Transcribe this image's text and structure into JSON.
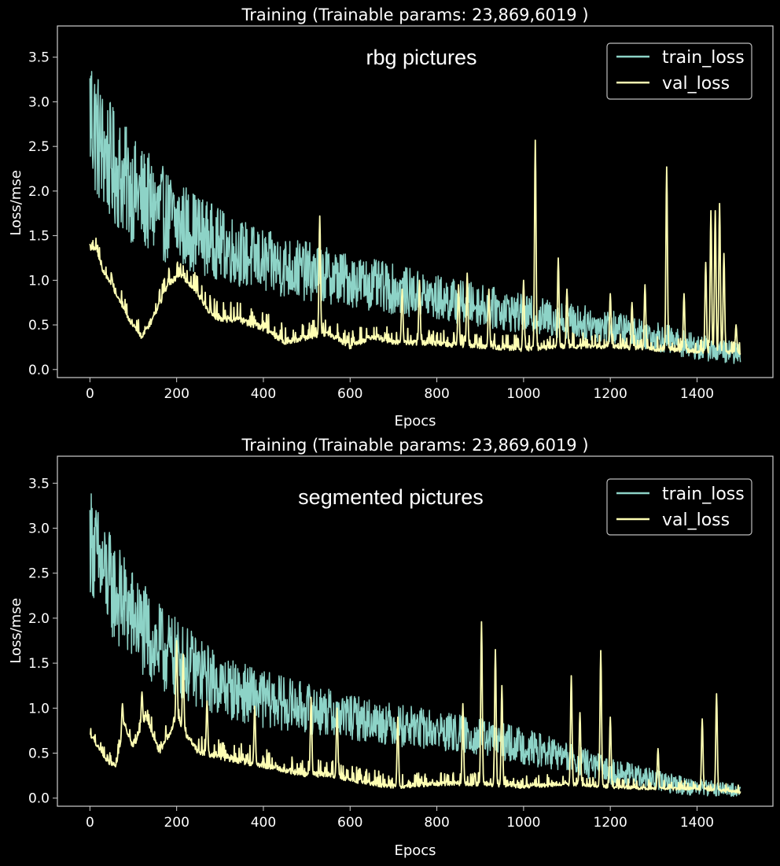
{
  "chart_data": [
    {
      "type": "line",
      "title": "Training (Trainable params: 23,869,6019 )",
      "annotation": "rbg pictures",
      "xlabel": "Epocs",
      "ylabel": "Loss/mse",
      "xlim": [
        -75,
        1575
      ],
      "ylim": [
        -0.09,
        3.85
      ],
      "xticks": [
        0,
        200,
        400,
        600,
        800,
        1000,
        1200,
        1400
      ],
      "yticks": [
        0.0,
        0.5,
        1.0,
        1.5,
        2.0,
        2.5,
        3.0,
        3.5
      ],
      "xticklabels": [
        "0",
        "200",
        "400",
        "600",
        "800",
        "1000",
        "1200",
        "1400"
      ],
      "yticklabels": [
        "0.0",
        "0.5",
        "1.0",
        "1.5",
        "2.0",
        "2.5",
        "3.0",
        "3.5"
      ],
      "grid": false,
      "legend_position": "top-right",
      "series": [
        {
          "name": "train_loss",
          "color": "#8dd3c7",
          "noise_amp": [
            [
              0,
              0.85
            ],
            [
              30,
              0.7
            ],
            [
              100,
              0.6
            ],
            [
              300,
              0.4
            ],
            [
              600,
              0.3
            ],
            [
              1000,
              0.22
            ],
            [
              1300,
              0.17
            ],
            [
              1500,
              0.12
            ]
          ],
          "x": [
            0,
            25,
            50,
            100,
            150,
            200,
            300,
            400,
            500,
            600,
            700,
            800,
            900,
            1000,
            1100,
            1200,
            1300,
            1400,
            1500
          ],
          "values": [
            2.9,
            2.5,
            2.3,
            2.0,
            1.8,
            1.65,
            1.4,
            1.2,
            1.1,
            1.0,
            0.9,
            0.8,
            0.72,
            0.62,
            0.55,
            0.48,
            0.38,
            0.25,
            0.18
          ]
        },
        {
          "name": "val_loss",
          "color": "#ffffb3",
          "noise_amp": [
            [
              0,
              0.1
            ],
            [
              300,
              0.15
            ],
            [
              800,
              0.12
            ],
            [
              1500,
              0.1
            ]
          ],
          "x": [
            0,
            15,
            30,
            60,
            90,
            120,
            150,
            180,
            210,
            240,
            280,
            300,
            340,
            400,
            450,
            500,
            550,
            600,
            650,
            700,
            800,
            900,
            1000,
            1100,
            1200,
            1300,
            1400,
            1500
          ],
          "values": [
            1.35,
            1.35,
            1.1,
            0.85,
            0.55,
            0.35,
            0.6,
            0.95,
            1.05,
            0.9,
            0.6,
            0.55,
            0.55,
            0.45,
            0.3,
            0.35,
            0.4,
            0.25,
            0.35,
            0.3,
            0.28,
            0.25,
            0.22,
            0.25,
            0.25,
            0.22,
            0.2,
            0.18
          ],
          "spikes": [
            {
              "x": 530,
              "value": 1.72
            },
            {
              "x": 720,
              "value": 0.9
            },
            {
              "x": 760,
              "value": 1.0
            },
            {
              "x": 850,
              "value": 0.95
            },
            {
              "x": 870,
              "value": 1.08
            },
            {
              "x": 920,
              "value": 0.9
            },
            {
              "x": 1000,
              "value": 1.0
            },
            {
              "x": 1027,
              "value": 2.57
            },
            {
              "x": 1080,
              "value": 1.25
            },
            {
              "x": 1100,
              "value": 0.9
            },
            {
              "x": 1200,
              "value": 0.85
            },
            {
              "x": 1250,
              "value": 0.75
            },
            {
              "x": 1280,
              "value": 0.95
            },
            {
              "x": 1330,
              "value": 2.27
            },
            {
              "x": 1370,
              "value": 0.85
            },
            {
              "x": 1420,
              "value": 1.2
            },
            {
              "x": 1432,
              "value": 1.78
            },
            {
              "x": 1442,
              "value": 1.78
            },
            {
              "x": 1452,
              "value": 1.86
            },
            {
              "x": 1462,
              "value": 1.3
            },
            {
              "x": 1490,
              "value": 0.5
            }
          ]
        }
      ]
    },
    {
      "type": "line",
      "title": "Training (Trainable params: 23,869,6019 )",
      "annotation": "segmented pictures",
      "xlabel": "Epocs",
      "ylabel": "Loss/mse",
      "xlim": [
        -75,
        1575
      ],
      "ylim": [
        -0.09,
        3.8
      ],
      "xticks": [
        0,
        200,
        400,
        600,
        800,
        1000,
        1200,
        1400
      ],
      "yticks": [
        0.0,
        0.5,
        1.0,
        1.5,
        2.0,
        2.5,
        3.0,
        3.5
      ],
      "xticklabels": [
        "0",
        "200",
        "400",
        "600",
        "800",
        "1000",
        "1200",
        "1400"
      ],
      "yticklabels": [
        "0.0",
        "0.5",
        "1.0",
        "1.5",
        "2.0",
        "2.5",
        "3.0",
        "3.5"
      ],
      "grid": false,
      "legend_position": "top-right",
      "series": [
        {
          "name": "train_loss",
          "color": "#8dd3c7",
          "noise_amp": [
            [
              0,
              0.6
            ],
            [
              30,
              0.6
            ],
            [
              100,
              0.55
            ],
            [
              300,
              0.35
            ],
            [
              600,
              0.25
            ],
            [
              1000,
              0.2
            ],
            [
              1300,
              0.12
            ],
            [
              1500,
              0.08
            ]
          ],
          "x": [
            0,
            25,
            50,
            100,
            150,
            200,
            300,
            400,
            500,
            600,
            700,
            800,
            900,
            1000,
            1100,
            1200,
            1300,
            1400,
            1500
          ],
          "values": [
            2.9,
            2.55,
            2.35,
            2.0,
            1.7,
            1.55,
            1.25,
            1.1,
            1.0,
            0.9,
            0.82,
            0.75,
            0.68,
            0.58,
            0.45,
            0.3,
            0.2,
            0.12,
            0.08
          ]
        },
        {
          "name": "val_loss",
          "color": "#ffffb3",
          "noise_amp": [
            [
              0,
              0.08
            ],
            [
              300,
              0.15
            ],
            [
              800,
              0.1
            ],
            [
              1500,
              0.06
            ]
          ],
          "x": [
            0,
            20,
            40,
            60,
            80,
            100,
            130,
            160,
            200,
            250,
            300,
            350,
            400,
            450,
            500,
            550,
            600,
            650,
            700,
            800,
            900,
            1000,
            1100,
            1200,
            1300,
            1400,
            1500
          ],
          "values": [
            0.7,
            0.55,
            0.4,
            0.35,
            0.8,
            0.55,
            0.9,
            0.5,
            0.85,
            0.5,
            0.45,
            0.4,
            0.35,
            0.3,
            0.25,
            0.25,
            0.2,
            0.15,
            0.12,
            0.15,
            0.15,
            0.12,
            0.15,
            0.12,
            0.1,
            0.1,
            0.06
          ],
          "spikes": [
            {
              "x": 75,
              "value": 1.05
            },
            {
              "x": 120,
              "value": 1.18
            },
            {
              "x": 200,
              "value": 1.75
            },
            {
              "x": 215,
              "value": 1.6
            },
            {
              "x": 270,
              "value": 1.08
            },
            {
              "x": 380,
              "value": 1.02
            },
            {
              "x": 510,
              "value": 1.12
            },
            {
              "x": 570,
              "value": 1.0
            },
            {
              "x": 710,
              "value": 0.9
            },
            {
              "x": 860,
              "value": 1.05
            },
            {
              "x": 903,
              "value": 1.96
            },
            {
              "x": 935,
              "value": 1.65
            },
            {
              "x": 950,
              "value": 1.25
            },
            {
              "x": 1110,
              "value": 1.36
            },
            {
              "x": 1130,
              "value": 0.95
            },
            {
              "x": 1178,
              "value": 1.64
            },
            {
              "x": 1200,
              "value": 0.9
            },
            {
              "x": 1310,
              "value": 0.55
            },
            {
              "x": 1412,
              "value": 0.88
            },
            {
              "x": 1445,
              "value": 1.16
            }
          ]
        }
      ]
    }
  ]
}
